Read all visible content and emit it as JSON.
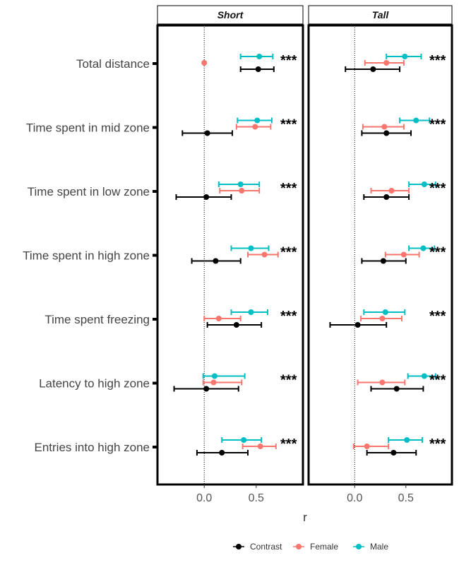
{
  "chart_data": {
    "type": "forest",
    "facet_labels": [
      "Short",
      "Tall"
    ],
    "measures": [
      "Total distance",
      "Time spent in mid zone",
      "Time spent in low zone",
      "Time spent in high zone",
      "Time spent freezing",
      "Latency to high zone",
      "Entries into high zone"
    ],
    "xlabel": "r",
    "x_ticks": [
      0.0,
      0.5
    ],
    "x_tick_labels": [
      "0.0",
      "0.5"
    ],
    "xlim": [
      -0.45,
      0.95
    ],
    "reference_line": 0,
    "significance_marker": "***",
    "legend_position": "bottom",
    "series": [
      {
        "name": "Contrast",
        "color": "#000000"
      },
      {
        "name": "Female",
        "color": "#F8766D"
      },
      {
        "name": "Male",
        "color": "#00BFC4"
      }
    ],
    "panels": [
      {
        "facet": "Short",
        "rows": [
          {
            "measure": "Total distance",
            "Male": [
              0.53,
              0.35,
              0.66
            ],
            "Female": [
              0.0,
              0.0,
              0.0
            ],
            "Contrast": [
              0.52,
              0.35,
              0.67
            ],
            "sig": true
          },
          {
            "measure": "Time spent in mid zone",
            "Male": [
              0.51,
              0.32,
              0.65
            ],
            "Female": [
              0.49,
              0.31,
              0.64
            ],
            "Contrast": [
              0.03,
              -0.21,
              0.27
            ],
            "sig": true
          },
          {
            "measure": "Time spent in low zone",
            "Male": [
              0.35,
              0.14,
              0.53
            ],
            "Female": [
              0.36,
              0.15,
              0.53
            ],
            "Contrast": [
              0.02,
              -0.27,
              0.26
            ],
            "sig": true
          },
          {
            "measure": "Time spent in high zone",
            "Male": [
              0.45,
              0.26,
              0.62
            ],
            "Female": [
              0.58,
              0.42,
              0.71
            ],
            "Contrast": [
              0.11,
              -0.12,
              0.35
            ],
            "sig": true
          },
          {
            "measure": "Time spent freezing",
            "Male": [
              0.45,
              0.26,
              0.61
            ],
            "Female": [
              0.14,
              0.0,
              0.35
            ],
            "Contrast": [
              0.31,
              0.03,
              0.55
            ],
            "sig": true
          },
          {
            "measure": "Latency to high zone",
            "Male": [
              0.1,
              -0.01,
              0.39
            ],
            "Female": [
              0.09,
              -0.01,
              0.36
            ],
            "Contrast": [
              0.02,
              -0.29,
              0.33
            ],
            "sig": true
          },
          {
            "measure": "Entries into high zone",
            "Male": [
              0.38,
              0.17,
              0.55
            ],
            "Female": [
              0.54,
              0.37,
              0.69
            ],
            "Contrast": [
              0.17,
              -0.07,
              0.42
            ],
            "sig": true
          }
        ]
      },
      {
        "facet": "Tall",
        "rows": [
          {
            "measure": "Total distance",
            "Male": [
              0.49,
              0.31,
              0.65
            ],
            "Female": [
              0.31,
              0.1,
              0.48
            ],
            "Contrast": [
              0.18,
              -0.09,
              0.44
            ],
            "sig": true
          },
          {
            "measure": "Time spent in mid zone",
            "Male": [
              0.6,
              0.44,
              0.73
            ],
            "Female": [
              0.29,
              0.08,
              0.48
            ],
            "Contrast": [
              0.31,
              0.07,
              0.55
            ],
            "sig": true
          },
          {
            "measure": "Time spent in low zone",
            "Male": [
              0.68,
              0.53,
              0.79
            ],
            "Female": [
              0.36,
              0.16,
              0.53
            ],
            "Contrast": [
              0.31,
              0.09,
              0.53
            ],
            "sig": true
          },
          {
            "measure": "Time spent in high zone",
            "Male": [
              0.67,
              0.53,
              0.78
            ],
            "Female": [
              0.48,
              0.3,
              0.63
            ],
            "Contrast": [
              0.28,
              0.07,
              0.5
            ],
            "sig": true
          },
          {
            "measure": "Time spent freezing",
            "Male": [
              0.3,
              0.09,
              0.49
            ],
            "Female": [
              0.27,
              0.06,
              0.46
            ],
            "Contrast": [
              0.03,
              -0.24,
              0.31
            ],
            "sig": true
          },
          {
            "measure": "Latency to high zone",
            "Male": [
              0.68,
              0.52,
              0.79
            ],
            "Female": [
              0.27,
              0.03,
              0.49
            ],
            "Contrast": [
              0.41,
              0.16,
              0.67
            ],
            "sig": true
          },
          {
            "measure": "Entries into high zone",
            "Male": [
              0.51,
              0.33,
              0.66
            ],
            "Female": [
              0.12,
              -0.01,
              0.33
            ],
            "Contrast": [
              0.38,
              0.12,
              0.6
            ],
            "sig": true
          }
        ]
      }
    ]
  }
}
